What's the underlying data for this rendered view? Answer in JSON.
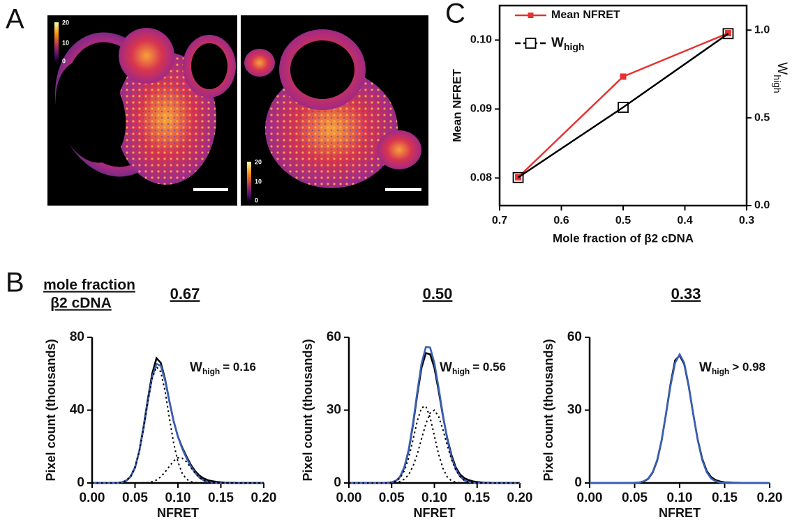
{
  "panel_labels": [
    "A",
    "B",
    "C"
  ],
  "panel_a": {
    "images": [
      {
        "colorbar": [
          20,
          10,
          0
        ]
      },
      {
        "colorbar": [
          20,
          10,
          0
        ]
      }
    ]
  },
  "panel_b": {
    "header": [
      "mole fraction",
      "β2 cDNA"
    ]
  },
  "chart_data": [
    {
      "type": "line",
      "title": "0.67",
      "xlabel": "NFRET",
      "ylabel": "Pixel count (thousands)",
      "annotation": {
        "symbol": "W",
        "subscript": "high",
        "text": "= 0.16"
      },
      "x": [
        0,
        0.03,
        0.035,
        0.04,
        0.045,
        0.05,
        0.055,
        0.06,
        0.065,
        0.07,
        0.075,
        0.08,
        0.085,
        0.09,
        0.095,
        0.1,
        0.105,
        0.11,
        0.115,
        0.12,
        0.125,
        0.13,
        0.135,
        0.14,
        0.145,
        0.15,
        0.155,
        0.16,
        0.165,
        0.17,
        0.2
      ],
      "xlim": [
        0,
        0.2
      ],
      "xticks": [
        {
          "value": 0,
          "label": "0.00"
        },
        {
          "value": 0.05,
          "label": "0.05"
        },
        {
          "value": 0.1,
          "label": "0.10"
        },
        {
          "value": 0.15,
          "label": "0.15"
        },
        {
          "value": 0.2,
          "label": "0.20"
        }
      ],
      "ylim": [
        0,
        80
      ],
      "yticks": [
        0,
        40,
        80
      ],
      "series": [
        {
          "color": "#000000",
          "style": "solid",
          "values": [
            0,
            0.1,
            0.4,
            1.3,
            3.5,
            8.4,
            17.5,
            31,
            46,
            60,
            68.5,
            66,
            57,
            45,
            34,
            25.5,
            19.5,
            14.5,
            10,
            6.5,
            4,
            2.5,
            1.5,
            1,
            0.6,
            0.4,
            0.2,
            0.1,
            0.1,
            0,
            0
          ]
        },
        {
          "color": "#3a5fb5",
          "style": "solid",
          "values": [
            0,
            0.1,
            0.4,
            1.4,
            3.7,
            8.7,
            17.4,
            30.1,
            44.9,
            58.2,
            65.4,
            64.4,
            56.4,
            44.9,
            34.1,
            25.4,
            18.9,
            13.7,
            9.2,
            5.6,
            3.0,
            1.4,
            0.6,
            0.2,
            0.1,
            0,
            0,
            0,
            0,
            0,
            0
          ]
        },
        {
          "color": "#000000",
          "style": "dotted",
          "values": [
            0,
            0.1,
            0.4,
            1.4,
            3.7,
            8.7,
            17.4,
            30.0,
            44.7,
            57.5,
            63.8,
            61.0,
            50.4,
            35.8,
            22.0,
            11.6,
            5.3,
            2.1,
            0.7,
            0.2,
            0.1,
            0,
            0,
            0,
            0,
            0,
            0,
            0,
            0,
            0,
            0
          ]
        },
        {
          "color": "#000000",
          "style": "dotted",
          "values": [
            0,
            0,
            0,
            0,
            0,
            0,
            0,
            0.1,
            0.2,
            0.7,
            1.6,
            3.4,
            6.0,
            9.1,
            12.1,
            13.8,
            13.6,
            11.6,
            8.5,
            5.4,
            2.9,
            1.4,
            0.6,
            0.2,
            0.1,
            0,
            0,
            0,
            0,
            0,
            0
          ]
        }
      ]
    },
    {
      "type": "line",
      "title": "0.50",
      "xlabel": "NFRET",
      "ylabel": "Pixel count (thousands)",
      "annotation": {
        "symbol": "W",
        "subscript": "high",
        "text": "= 0.56"
      },
      "x": [
        0,
        0.03,
        0.035,
        0.04,
        0.045,
        0.05,
        0.055,
        0.06,
        0.065,
        0.07,
        0.075,
        0.08,
        0.085,
        0.09,
        0.095,
        0.1,
        0.105,
        0.11,
        0.115,
        0.12,
        0.125,
        0.13,
        0.135,
        0.14,
        0.145,
        0.15,
        0.155,
        0.16,
        0.165,
        0.17,
        0.2
      ],
      "xlim": [
        0,
        0.2
      ],
      "xticks": [
        {
          "value": 0,
          "label": "0.00"
        },
        {
          "value": 0.05,
          "label": "0.05"
        },
        {
          "value": 0.1,
          "label": "0.10"
        },
        {
          "value": 0.15,
          "label": "0.15"
        },
        {
          "value": 0.2,
          "label": "0.20"
        }
      ],
      "ylim": [
        0,
        60
      ],
      "yticks": [
        0,
        30,
        60
      ],
      "series": [
        {
          "color": "#000000",
          "style": "solid",
          "values": [
            0,
            0,
            0,
            0,
            0.1,
            0.3,
            0.9,
            2.6,
            6.5,
            13.5,
            24,
            36.5,
            47.5,
            53.5,
            53,
            47.5,
            38,
            27.5,
            18.5,
            11.5,
            6.5,
            3.5,
            2,
            1.2,
            0.7,
            0.4,
            0.2,
            0.1,
            0.1,
            0,
            0
          ]
        },
        {
          "color": "#3a5fb5",
          "style": "solid",
          "values": [
            0,
            0,
            0,
            0,
            0.1,
            0.3,
            0.9,
            2.7,
            6.7,
            13.9,
            24.7,
            37.5,
            49.2,
            56.0,
            55.8,
            49.4,
            39.2,
            28.0,
            18.1,
            10.6,
            5.7,
            2.7,
            1.1,
            0.4,
            0.1,
            0,
            0,
            0,
            0,
            0,
            0
          ]
        },
        {
          "color": "#000000",
          "style": "dotted",
          "values": [
            0,
            0,
            0,
            0,
            0.1,
            0.2,
            0.7,
            2.1,
            5.1,
            10.4,
            17.8,
            25.6,
            31.0,
            31.6,
            27.0,
            19.4,
            11.8,
            6.0,
            2.5,
            0.9,
            0.3,
            0.1,
            0,
            0,
            0,
            0,
            0,
            0,
            0,
            0,
            0
          ]
        },
        {
          "color": "#000000",
          "style": "dotted",
          "values": [
            0,
            0,
            0,
            0,
            0,
            0.1,
            0.2,
            0.6,
            1.6,
            3.5,
            6.9,
            11.9,
            18.2,
            24.4,
            28.8,
            30.0,
            27.4,
            22.0,
            15.6,
            9.7,
            5.4,
            2.6,
            1.1,
            0.4,
            0.1,
            0,
            0,
            0,
            0,
            0,
            0
          ]
        }
      ]
    },
    {
      "type": "line",
      "title": "0.33",
      "xlabel": "NFRET",
      "ylabel": "Pixel count (thousands)",
      "annotation": {
        "symbol": "W",
        "subscript": "high",
        "text": "> 0.98"
      },
      "x": [
        0,
        0.03,
        0.035,
        0.04,
        0.045,
        0.05,
        0.055,
        0.06,
        0.065,
        0.07,
        0.075,
        0.08,
        0.085,
        0.09,
        0.095,
        0.1,
        0.105,
        0.11,
        0.115,
        0.12,
        0.125,
        0.13,
        0.135,
        0.14,
        0.145,
        0.15,
        0.155,
        0.16,
        0.165,
        0.17,
        0.2
      ],
      "xlim": [
        0,
        0.2
      ],
      "xticks": [
        {
          "value": 0,
          "label": "0.00"
        },
        {
          "value": 0.05,
          "label": "0.05"
        },
        {
          "value": 0.1,
          "label": "0.10"
        },
        {
          "value": 0.15,
          "label": "0.15"
        },
        {
          "value": 0.2,
          "label": "0.20"
        }
      ],
      "ylim": [
        0,
        60
      ],
      "yticks": [
        0,
        30,
        60
      ],
      "series": [
        {
          "color": "#000000",
          "style": "solid",
          "values": [
            0,
            0,
            0,
            0,
            0,
            0.1,
            0.2,
            0.6,
            1.7,
            4.3,
            9.2,
            17.5,
            28.8,
            41,
            50.5,
            52.5,
            49,
            40,
            28.5,
            18,
            10,
            5,
            2.4,
            1.2,
            0.6,
            0.3,
            0.2,
            0.1,
            0.1,
            0,
            0
          ]
        },
        {
          "color": "#3a5fb5",
          "style": "solid",
          "values": [
            0,
            0,
            0,
            0,
            0,
            0.1,
            0.2,
            0.7,
            1.8,
            4.5,
            9.5,
            17.7,
            28.6,
            40.3,
            49.5,
            53,
            49.5,
            40.3,
            28.6,
            17.7,
            9.5,
            4.5,
            1.8,
            0.7,
            0.2,
            0.1,
            0,
            0,
            0,
            0,
            0
          ]
        }
      ]
    },
    {
      "type": "line",
      "xlabel": "Mole fraction of β2 cDNA",
      "ylabel": "Mean NFRET",
      "y2label": {
        "symbol": "W",
        "subscript": "high"
      },
      "x": [
        0.67,
        0.5,
        0.33
      ],
      "xlim": [
        0.7,
        0.3
      ],
      "xticks": [
        0.7,
        0.6,
        0.5,
        0.4,
        0.3
      ],
      "ylim": [
        0.076,
        0.105
      ],
      "yticks": [
        0.08,
        0.09,
        {
          "value": 0.1,
          "label": "0.10"
        }
      ],
      "y2lim": [
        0,
        1.14
      ],
      "y2ticks": [
        {
          "value": 0,
          "label": "0.0"
        },
        0.5,
        {
          "value": 1,
          "label": "1.0"
        }
      ],
      "series": [
        {
          "name": "Mean NFRET",
          "color": "#e8312f",
          "marker": "filled-square",
          "values": [
            0.0801,
            0.0947,
            0.101
          ]
        },
        {
          "name": "W",
          "name_subscript": "high",
          "color": "#000000",
          "marker": "open-square",
          "axis": "y2",
          "values": [
            0.16,
            0.56,
            0.98
          ]
        }
      ]
    }
  ]
}
